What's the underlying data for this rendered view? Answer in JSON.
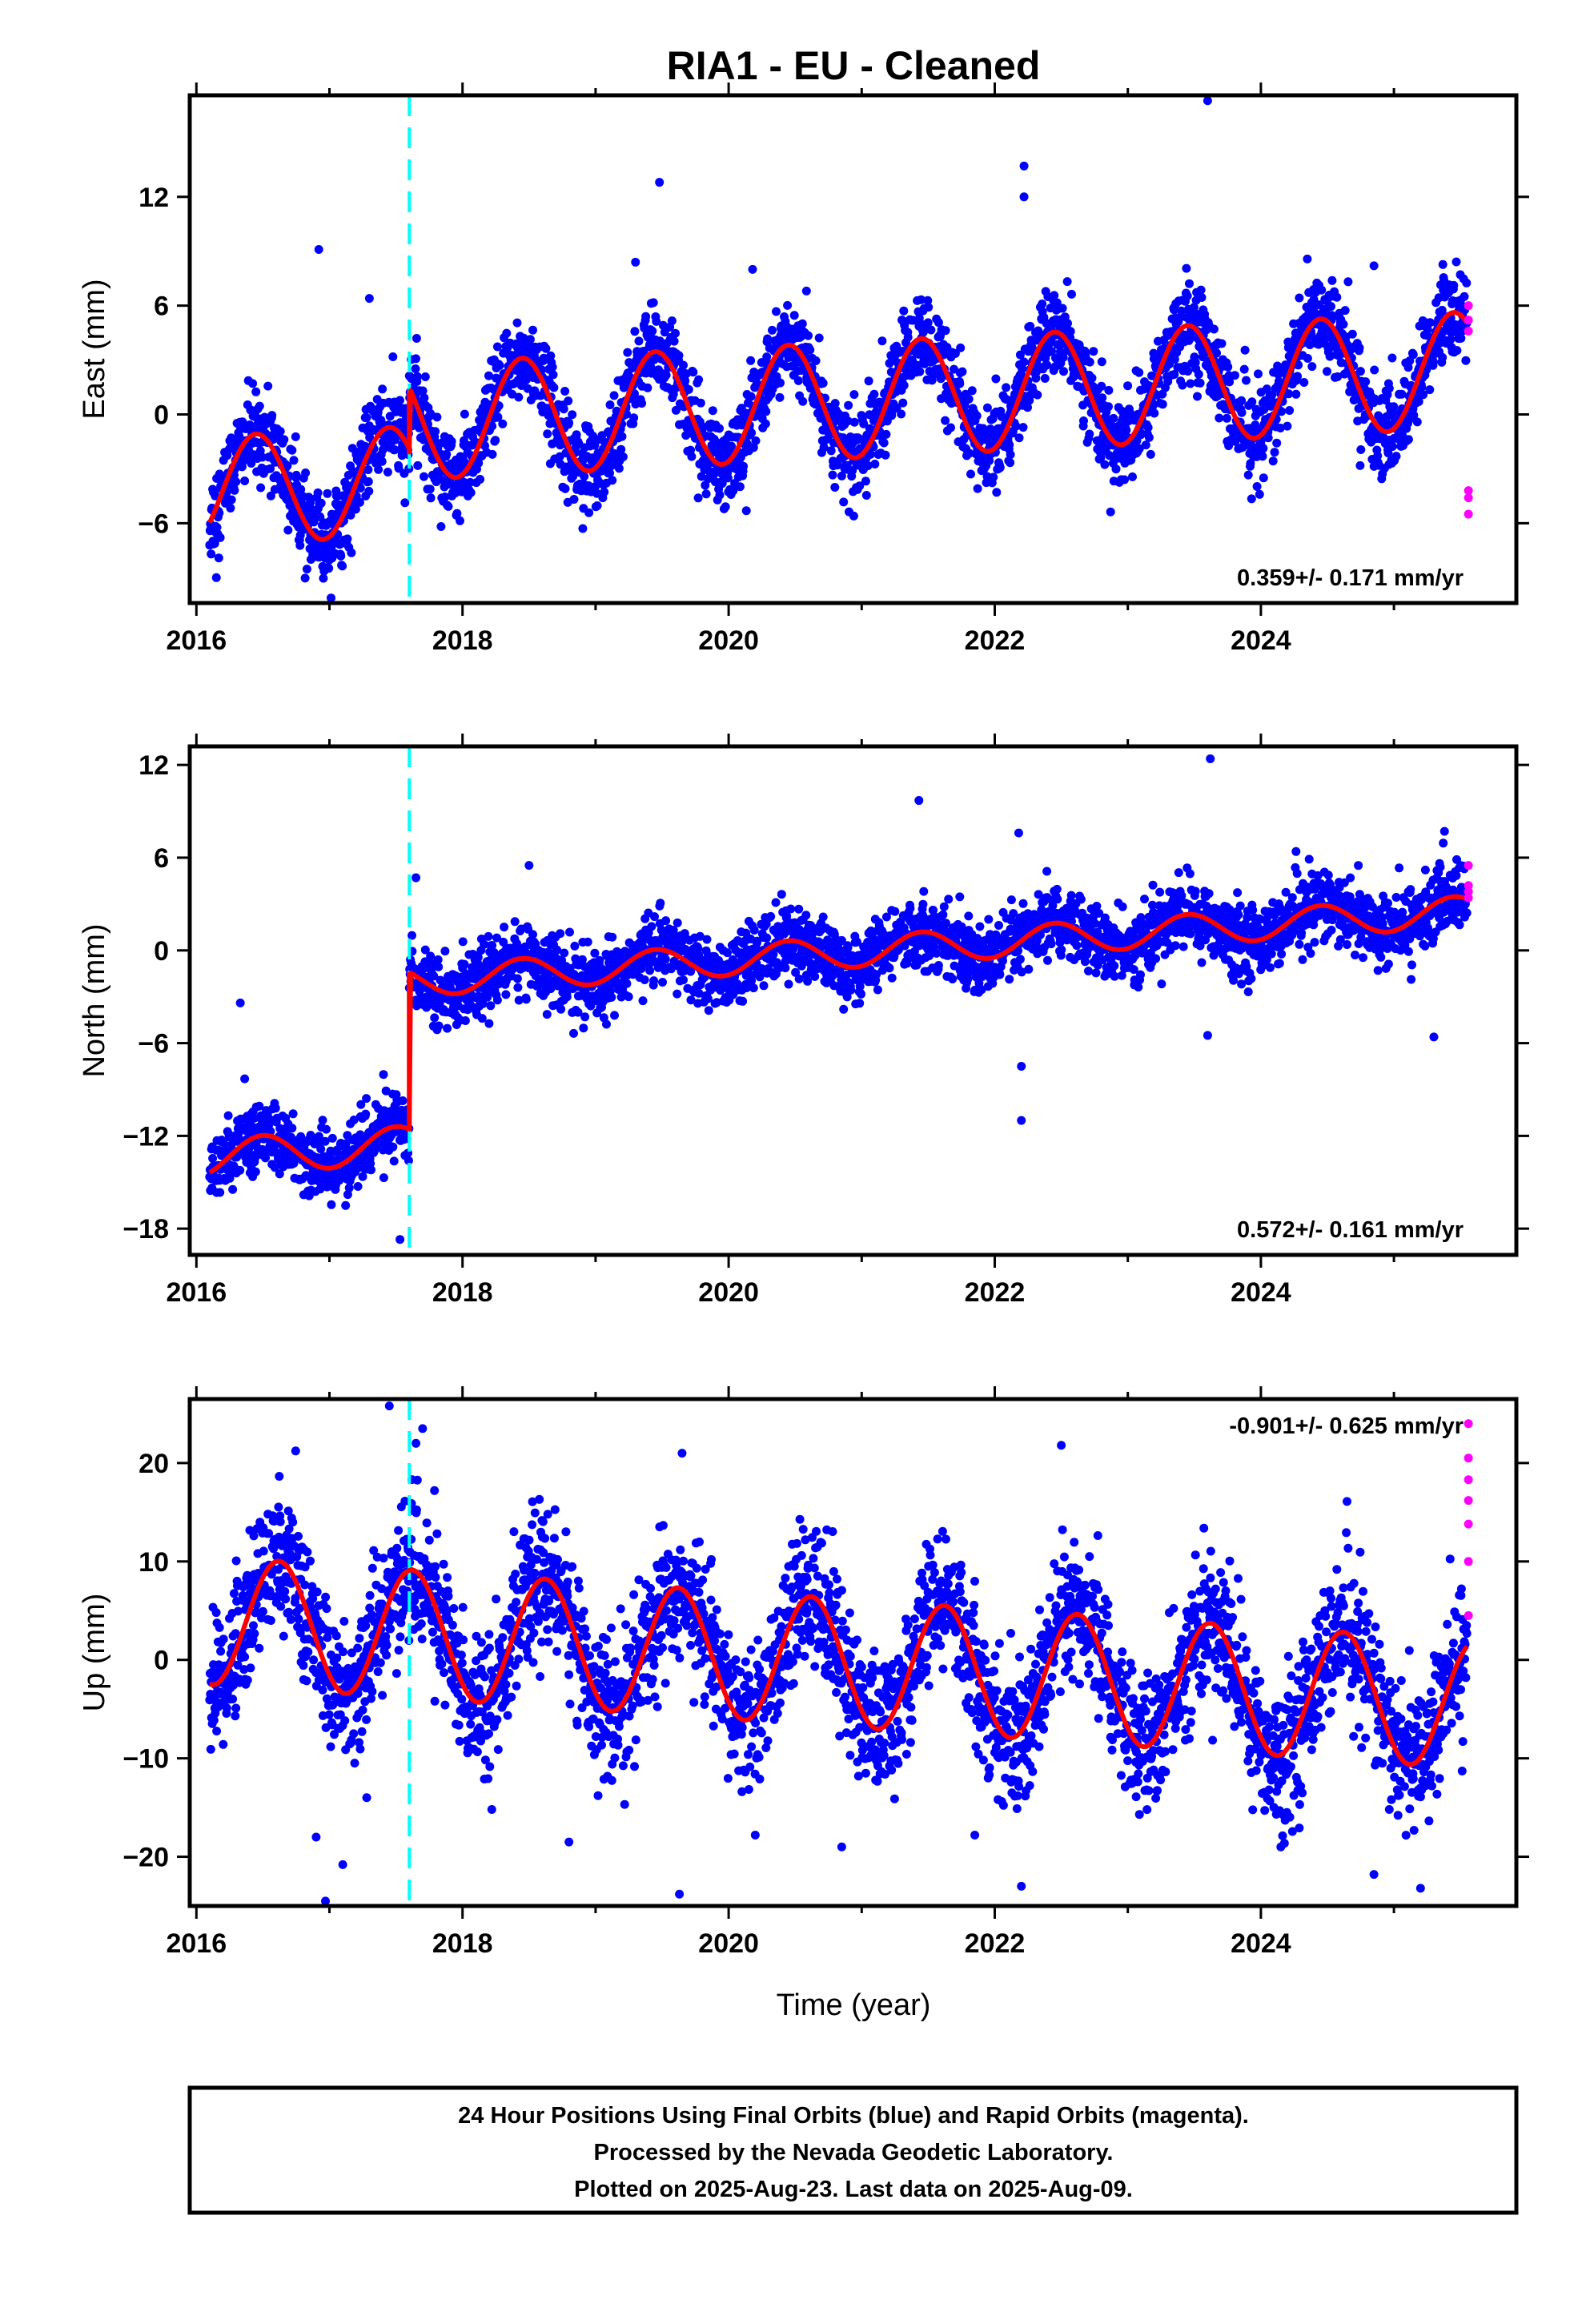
{
  "title": "RIA1  - EU - Cleaned",
  "x_axis_label": "Time (year)",
  "colors": {
    "final": "#0000ff",
    "rapid": "#ff00ff",
    "model": "#ff0000",
    "event": "#00ffff",
    "frame": "#000000"
  },
  "footer": {
    "line1": "24 Hour Positions Using Final Orbits (blue) and Rapid Orbits (magenta).",
    "line2": "Processed by the Nevada Geodetic Laboratory.",
    "line3": "Plotted on 2025-Aug-23. Last data on 2025-Aug-09."
  },
  "chart_data": [
    {
      "type": "scatter",
      "component": "east",
      "ylabel": "East (mm)",
      "xlim": [
        2015.95,
        2025.92
      ],
      "ylim": [
        -10.4,
        17.6
      ],
      "xticks": [
        2016,
        2018,
        2020,
        2022,
        2024
      ],
      "yticks": [
        -6,
        0,
        6,
        12
      ],
      "rate": "0.359+/- 0.171 mm/yr",
      "rate_position": "bottom-right",
      "event_lines": [
        2017.6
      ],
      "model": {
        "segments": [
          {
            "x_start": 2016.1,
            "x_end": 2017.6,
            "base": -4.2,
            "trend": 0.36,
            "seasonal_amplitude": 3.0,
            "peak_x": 2016.45
          },
          {
            "x_start": 2017.6,
            "x_end": 2025.55,
            "base": -0.4,
            "trend": 0.36,
            "seasonal_amplitude": 3.2,
            "peak_x": 2018.45
          }
        ],
        "jumps": [
          {
            "x": 2017.6,
            "from": -2.2,
            "to": 1.2
          }
        ]
      },
      "scatter_spread": 1.2,
      "outliers": [
        {
          "x": 2016.92,
          "y": 9.1
        },
        {
          "x": 2017.3,
          "y": 6.4
        },
        {
          "x": 2019.48,
          "y": 12.8
        },
        {
          "x": 2019.3,
          "y": 8.4
        },
        {
          "x": 2020.18,
          "y": 8.0
        },
        {
          "x": 2022.22,
          "y": 13.7
        },
        {
          "x": 2022.22,
          "y": 12.0
        },
        {
          "x": 2023.6,
          "y": 17.3
        },
        {
          "x": 2024.85,
          "y": 8.2
        },
        {
          "x": 2016.15,
          "y": -9.0
        }
      ],
      "rapid_points": [
        {
          "x": 2025.56,
          "y": 6.0
        },
        {
          "x": 2025.56,
          "y": 5.2
        },
        {
          "x": 2025.56,
          "y": 4.6
        },
        {
          "x": 2025.56,
          "y": -4.2
        },
        {
          "x": 2025.56,
          "y": -4.6
        },
        {
          "x": 2025.56,
          "y": -5.5
        }
      ]
    },
    {
      "type": "scatter",
      "component": "north",
      "ylabel": "North (mm)",
      "xlim": [
        2015.95,
        2025.92
      ],
      "ylim": [
        -19.7,
        13.2
      ],
      "xticks": [
        2016,
        2018,
        2020,
        2022,
        2024
      ],
      "yticks": [
        -18,
        -12,
        -6,
        0,
        6,
        12
      ],
      "rate": "0.572+/- 0.161 mm/yr",
      "rate_position": "bottom-right",
      "event_lines": [
        2017.6
      ],
      "model": {
        "segments": [
          {
            "x_start": 2016.1,
            "x_end": 2017.6,
            "base": -13.4,
            "trend": 0.57,
            "seasonal_amplitude": 1.2,
            "peak_x": 2016.5
          },
          {
            "x_start": 2017.6,
            "x_end": 2025.55,
            "base": -2.0,
            "trend": 0.57,
            "seasonal_amplitude": 1.0,
            "peak_x": 2018.45
          }
        ],
        "jumps": [
          {
            "x": 2017.6,
            "from": -11.7,
            "to": -1.4
          }
        ]
      },
      "scatter_spread": 1.1,
      "outliers": [
        {
          "x": 2016.33,
          "y": -3.4
        },
        {
          "x": 2017.65,
          "y": 4.7
        },
        {
          "x": 2021.43,
          "y": 9.7
        },
        {
          "x": 2022.18,
          "y": 7.6
        },
        {
          "x": 2022.2,
          "y": -7.5
        },
        {
          "x": 2022.2,
          "y": -11.0
        },
        {
          "x": 2023.62,
          "y": 12.4
        },
        {
          "x": 2023.6,
          "y": -5.5
        },
        {
          "x": 2025.3,
          "y": -5.6
        },
        {
          "x": 2017.53,
          "y": -18.7
        },
        {
          "x": 2018.5,
          "y": 5.5
        },
        {
          "x": 2025.38,
          "y": 7.7
        }
      ],
      "rapid_points": [
        {
          "x": 2025.56,
          "y": 5.5
        },
        {
          "x": 2025.56,
          "y": 4.2
        },
        {
          "x": 2025.56,
          "y": 3.8
        },
        {
          "x": 2025.56,
          "y": 3.4
        }
      ]
    },
    {
      "type": "scatter",
      "component": "up",
      "ylabel": "Up (mm)",
      "xlim": [
        2015.95,
        2025.92
      ],
      "ylim": [
        -25.0,
        26.5
      ],
      "xticks": [
        2016,
        2018,
        2020,
        2022,
        2024
      ],
      "yticks": [
        -20,
        -10,
        0,
        10,
        20
      ],
      "rate": "-0.901+/- 0.625 mm/yr",
      "rate_position": "top-right",
      "event_lines": [
        2017.6
      ],
      "model": {
        "segments": [
          {
            "x_start": 2016.1,
            "x_end": 2025.55,
            "base": 4.0,
            "trend": -0.9,
            "seasonal_amplitude": 6.5,
            "peak_x": 2016.62
          }
        ],
        "jumps": []
      },
      "scatter_spread": 3.5,
      "outliers": [
        {
          "x": 2017.45,
          "y": 25.8
        },
        {
          "x": 2017.7,
          "y": 23.5
        },
        {
          "x": 2017.65,
          "y": 22.0
        },
        {
          "x": 2016.97,
          "y": -24.5
        },
        {
          "x": 2017.1,
          "y": -20.8
        },
        {
          "x": 2016.9,
          "y": -18.0
        },
        {
          "x": 2019.63,
          "y": -23.8
        },
        {
          "x": 2019.65,
          "y": 21.0
        },
        {
          "x": 2018.8,
          "y": -18.5
        },
        {
          "x": 2020.2,
          "y": -17.8
        },
        {
          "x": 2020.85,
          "y": -19.0
        },
        {
          "x": 2021.85,
          "y": -17.8
        },
        {
          "x": 2022.2,
          "y": -23.0
        },
        {
          "x": 2022.5,
          "y": 21.8
        },
        {
          "x": 2024.15,
          "y": -19.0
        },
        {
          "x": 2024.85,
          "y": -21.8
        },
        {
          "x": 2025.2,
          "y": -23.2
        },
        {
          "x": 2017.28,
          "y": -14.0
        },
        {
          "x": 2018.22,
          "y": -15.2
        }
      ],
      "rapid_points": [
        {
          "x": 2025.56,
          "y": 24.0
        },
        {
          "x": 2025.56,
          "y": 20.5
        },
        {
          "x": 2025.56,
          "y": 18.3
        },
        {
          "x": 2025.56,
          "y": 16.2
        },
        {
          "x": 2025.56,
          "y": 13.8
        },
        {
          "x": 2025.56,
          "y": 10.0
        },
        {
          "x": 2025.56,
          "y": 4.5
        }
      ]
    }
  ]
}
